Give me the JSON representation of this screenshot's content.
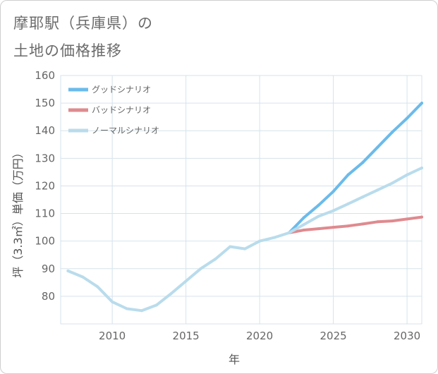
{
  "title": {
    "line1": "摩耶駅（兵庫県）の",
    "line2": "土地の価格推移"
  },
  "chart_data": {
    "type": "line",
    "xlabel": "年",
    "ylabel": "坪（3.3㎡）単価（万円）",
    "xlim": [
      2006.5,
      2031
    ],
    "ylim": [
      70,
      160
    ],
    "x_ticks": [
      2010,
      2015,
      2020,
      2025,
      2030
    ],
    "y_ticks": [
      80,
      90,
      100,
      110,
      120,
      130,
      140,
      150,
      160
    ],
    "grid": true,
    "legend_position": "top-left",
    "series": [
      {
        "name": "グッドシナリオ",
        "color": "#6bbbeb",
        "x": [
          2022,
          2023,
          2024,
          2025,
          2026,
          2027,
          2028,
          2029,
          2030,
          2031
        ],
        "y": [
          103,
          108.5,
          113,
          118,
          124,
          128.5,
          134,
          139.5,
          144.5,
          150
        ]
      },
      {
        "name": "バッドシナリオ",
        "color": "#df8a8f",
        "x": [
          2022,
          2023,
          2024,
          2025,
          2026,
          2027,
          2028,
          2029,
          2030,
          2031
        ],
        "y": [
          103,
          104,
          104.5,
          105,
          105.5,
          106.2,
          107,
          107.3,
          108,
          108.7
        ]
      },
      {
        "name": "ノーマルシナリオ",
        "color": "#b9dcec",
        "x": [
          2007,
          2008,
          2009,
          2010,
          2011,
          2012,
          2013,
          2014,
          2015,
          2016,
          2017,
          2018,
          2019,
          2020,
          2021,
          2022,
          2023,
          2024,
          2025,
          2026,
          2027,
          2028,
          2029,
          2030,
          2031
        ],
        "y": [
          89.2,
          87,
          83.5,
          78,
          75.5,
          74.8,
          76.8,
          81,
          85.5,
          90,
          93.5,
          98,
          97.2,
          100,
          101.3,
          103,
          106,
          109,
          111,
          113.5,
          116,
          118.5,
          121,
          124,
          126.5
        ]
      }
    ]
  }
}
